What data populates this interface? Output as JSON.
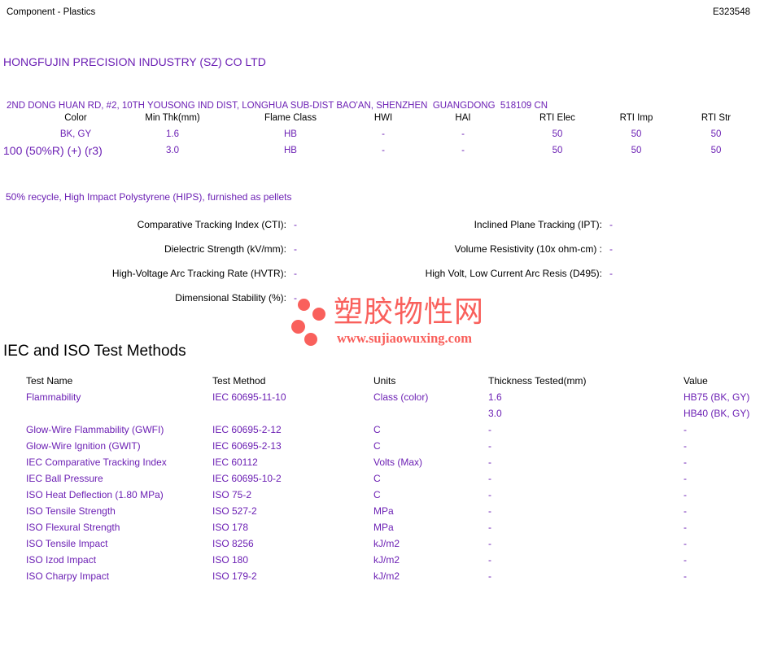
{
  "doc": {
    "type_label": "Component - Plastics",
    "file_number": "E323548"
  },
  "company": {
    "name": "HONGFUJIN PRECISION INDUSTRY (SZ) CO LTD",
    "address": "2ND DONG HUAN RD, #2, 10TH YOUSONG IND DIST, LONGHUA SUB-DIST BAO'AN, SHENZHEN  GUANGDONG  518109 CN",
    "grade": "100 (50%R) (+) (r3)",
    "description": "50% recycle, High Impact Polystyrene (HIPS), furnished as pellets"
  },
  "ratings_table": {
    "headers": [
      "Color",
      "Min Thk(mm)",
      "Flame Class",
      "HWI",
      "HAI",
      "RTI Elec",
      "RTI Imp",
      "RTI Str"
    ],
    "rows": [
      [
        "BK, GY",
        "1.6",
        "HB",
        "-",
        "-",
        "50",
        "50",
        "50"
      ],
      [
        "",
        "3.0",
        "HB",
        "-",
        "-",
        "50",
        "50",
        "50"
      ]
    ]
  },
  "electrical": {
    "left": [
      {
        "label": "Comparative Tracking Index (CTI):",
        "value": "-"
      },
      {
        "label": "Dielectric Strength (kV/mm):",
        "value": "-"
      },
      {
        "label": "High-Voltage Arc Tracking Rate (HVTR):",
        "value": "-"
      },
      {
        "label": "Dimensional Stability (%):",
        "value": "-"
      }
    ],
    "right": [
      {
        "label": "Inclined Plane Tracking (IPT):",
        "value": "-"
      },
      {
        "label": "Volume Resistivity (10x ohm-cm) :",
        "value": "-"
      },
      {
        "label": "High Volt, Low Current Arc Resis (D495):",
        "value": "-"
      }
    ]
  },
  "watermark": {
    "site_name": "塑胶物性网",
    "site_url": "www.sujiaowuxing.com",
    "color": "#f9605c"
  },
  "test_methods": {
    "heading": "IEC and ISO Test Methods",
    "headers": [
      "Test Name",
      "Test Method",
      "Units",
      "Thickness Tested(mm)",
      "Value"
    ],
    "rows": [
      [
        "Flammability",
        "IEC 60695-11-10",
        "Class (color)",
        "1.6",
        "HB75 (BK, GY)"
      ],
      [
        "",
        "",
        "",
        "3.0",
        "HB40 (BK, GY)"
      ],
      [
        "Glow-Wire Flammability (GWFI)",
        "IEC 60695-2-12",
        "C",
        "-",
        "-"
      ],
      [
        "Glow-Wire Ignition (GWIT)",
        "IEC 60695-2-13",
        "C",
        "-",
        "-"
      ],
      [
        "IEC Comparative Tracking Index",
        "IEC 60112",
        "Volts (Max)",
        "-",
        "-"
      ],
      [
        "IEC Ball Pressure",
        "IEC 60695-10-2",
        "C",
        "-",
        "-"
      ],
      [
        "ISO Heat Deflection (1.80 MPa)",
        "ISO 75-2",
        "C",
        "-",
        "-"
      ],
      [
        "ISO Tensile Strength",
        "ISO 527-2",
        "MPa",
        "-",
        "-"
      ],
      [
        "ISO Flexural Strength",
        "ISO 178",
        "MPa",
        "-",
        "-"
      ],
      [
        "ISO Tensile Impact",
        "ISO 8256",
        "kJ/m2",
        "-",
        "-"
      ],
      [
        "ISO Izod Impact",
        "ISO 180",
        "kJ/m2",
        "-",
        "-"
      ],
      [
        "ISO Charpy Impact",
        "ISO 179-2",
        "kJ/m2",
        "-",
        "-"
      ]
    ]
  },
  "colors": {
    "accent_purple": "#6c20b4",
    "watermark_red": "#f9605c",
    "text_black": "#000000"
  }
}
